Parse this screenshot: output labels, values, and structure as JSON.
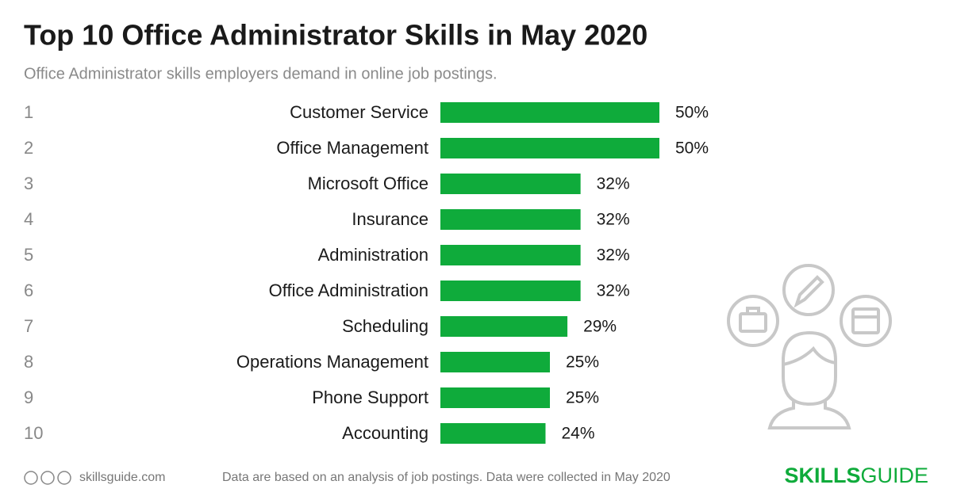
{
  "chart_data": {
    "type": "bar",
    "orientation": "horizontal",
    "title": "Top 10 Office Administrator Skills in May 2020",
    "subtitle": "Office Administrator skills employers demand in online job postings.",
    "ranks": [
      1,
      2,
      3,
      4,
      5,
      6,
      7,
      8,
      9,
      10
    ],
    "categories": [
      "Customer Service",
      "Office Management",
      "Microsoft Office",
      "Insurance",
      "Administration",
      "Office Administration",
      "Scheduling",
      "Operations Management",
      "Phone Support",
      "Accounting"
    ],
    "values": [
      50,
      50,
      32,
      32,
      32,
      32,
      29,
      25,
      25,
      24
    ],
    "value_labels": [
      "50%",
      "50%",
      "32%",
      "32%",
      "32%",
      "32%",
      "29%",
      "25%",
      "25%",
      "24%"
    ],
    "color": "#0fab3b",
    "source": "skillsguide.com",
    "note": "Data are based on an analysis of job postings. Data were collected in May 2020",
    "brand": [
      "SKILLS",
      "GUIDE"
    ]
  }
}
